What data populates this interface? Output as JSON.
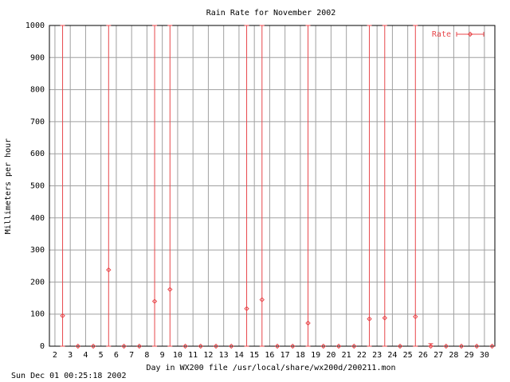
{
  "chart_data": {
    "type": "errorbar",
    "title": "Rain Rate for November 2002",
    "x_label": "Day in WX200 file /usr/local/share/wx200d/200211.mon",
    "y_label": "Millimeters per hour",
    "footer": "Sun Dec 01 00:25:18 2002",
    "xlim": [
      1.64,
      30.68
    ],
    "ylim": [
      0,
      1000
    ],
    "xticks": [
      2,
      3,
      4,
      5,
      6,
      7,
      8,
      9,
      10,
      11,
      12,
      13,
      14,
      15,
      16,
      17,
      18,
      19,
      20,
      21,
      22,
      23,
      24,
      25,
      26,
      27,
      28,
      29,
      30
    ],
    "yticks": [
      0,
      100,
      200,
      300,
      400,
      500,
      600,
      700,
      800,
      900,
      1000
    ],
    "grid": true,
    "legend": "top-right",
    "series": [
      {
        "name": "Rate",
        "color": "#e8474b",
        "x": [
          2.5,
          3.5,
          4.5,
          5.5,
          6.5,
          7.5,
          8.5,
          9.5,
          10.5,
          11.5,
          12.5,
          13.5,
          14.5,
          15.5,
          16.5,
          17.5,
          18.5,
          19.5,
          20.5,
          21.5,
          22.5,
          23.5,
          24.5,
          25.5,
          26.5,
          27.5,
          28.5,
          29.5,
          30.5
        ],
        "values": [
          95,
          0,
          0,
          238,
          0,
          0,
          140,
          177,
          0,
          0,
          0,
          0,
          117,
          145,
          0,
          0,
          72,
          0,
          0,
          0,
          85,
          88,
          0,
          92,
          0,
          0,
          0,
          0,
          0
        ],
        "ylow": [
          0,
          0,
          0,
          0,
          0,
          0,
          0,
          0,
          0,
          0,
          0,
          0,
          0,
          0,
          0,
          0,
          0,
          0,
          0,
          0,
          0,
          0,
          0,
          0,
          0,
          0,
          0,
          0,
          0
        ],
        "yhigh": [
          1000,
          0,
          0,
          1000,
          0,
          0,
          1000,
          1000,
          0,
          0,
          0,
          0,
          1000,
          1000,
          0,
          0,
          1000,
          0,
          0,
          0,
          1000,
          1000,
          0,
          1000,
          8,
          0,
          0,
          0,
          0
        ]
      }
    ]
  }
}
